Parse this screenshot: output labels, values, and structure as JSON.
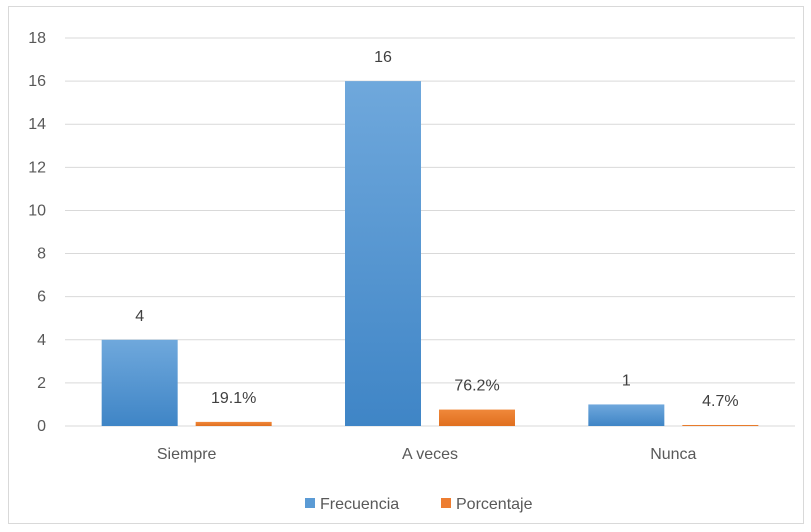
{
  "chart_data": {
    "type": "bar",
    "categories": [
      "Siempre",
      "A veces",
      "Nunca"
    ],
    "series": [
      {
        "name": "Frecuencia",
        "values": [
          4,
          16,
          1
        ],
        "labels": [
          "4",
          "16",
          "1"
        ]
      },
      {
        "name": "Porcentaje",
        "values": [
          0.191,
          0.762,
          0.047
        ],
        "labels": [
          "19.1%",
          "76.2%",
          "4.7%"
        ]
      }
    ],
    "colors": [
      "#5b9bd5",
      "#ed7d31"
    ],
    "ylim": [
      0,
      18
    ],
    "yticks": [
      "0",
      "2",
      "4",
      "6",
      "8",
      "10",
      "12",
      "14",
      "16",
      "18"
    ],
    "grid": true,
    "legend_position": "bottom"
  }
}
